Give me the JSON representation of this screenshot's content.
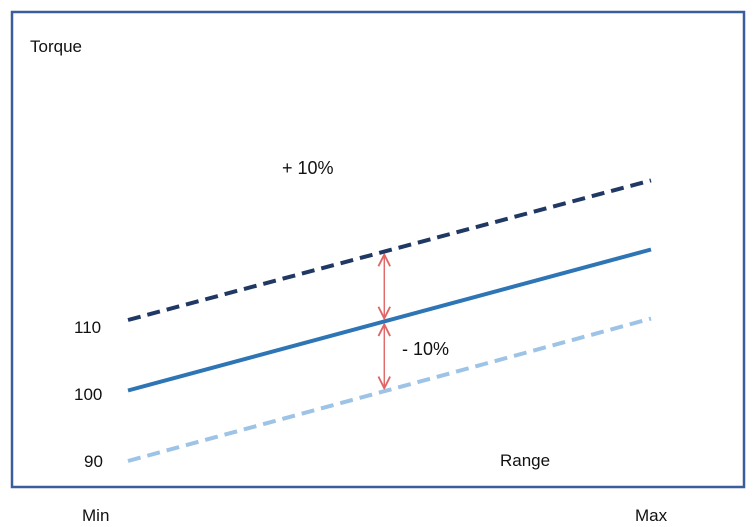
{
  "chart_data": {
    "type": "line",
    "ylabel": "Torque",
    "xlabel": "Range",
    "x_tick_labels": [
      "Min",
      "Max"
    ],
    "y_tick_labels": [
      "110",
      "100",
      "90"
    ],
    "x": [
      0,
      1
    ],
    "ylim": [
      90,
      110
    ],
    "grid": false,
    "legend": "none",
    "series": [
      {
        "key": "upper",
        "values": [
          110,
          129.8
        ],
        "color": "#1f3864",
        "dashed": true
      },
      {
        "key": "nominal",
        "values": [
          100,
          120
        ],
        "color": "#2e75b6",
        "dashed": false
      },
      {
        "key": "lower",
        "values": [
          90,
          110.2
        ],
        "color": "#9dc3e6",
        "dashed": true
      }
    ],
    "annotations": {
      "plus_label": "+ 10%",
      "minus_label": "- 10%",
      "arrow_x": 0.49,
      "arrow_color": "#e06666"
    },
    "frame_color": "#3a5d9c"
  }
}
